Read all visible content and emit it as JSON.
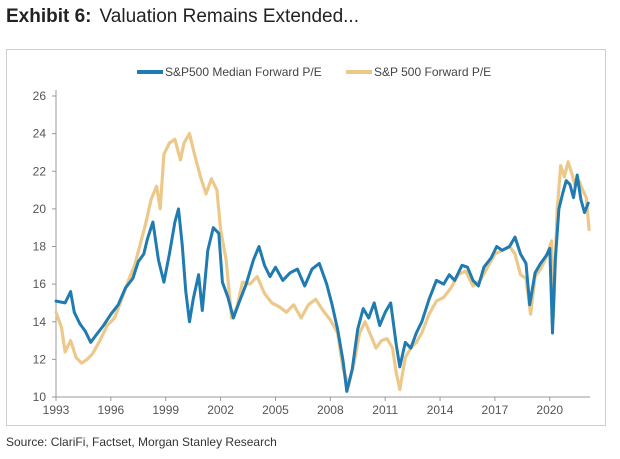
{
  "exhibit": {
    "label": "Exhibit 6:",
    "title": "Valuation Remains Extended...",
    "source": "Source: ClariFi, Factset, Morgan Stanley Research"
  },
  "colors": {
    "median": "#1f7bb0",
    "sp500": "#ecc98a",
    "axis": "#9a9a9a",
    "text": "#555555"
  },
  "chart_data": {
    "type": "line",
    "title": "",
    "xlabel": "",
    "ylabel": "",
    "grid": false,
    "legend": "top-center",
    "xlim": [
      1993,
      2022.2
    ],
    "ylim": [
      10,
      26
    ],
    "xticks": [
      1993,
      1996,
      1999,
      2002,
      2005,
      2008,
      2011,
      2014,
      2017,
      2020
    ],
    "yticks": [
      10,
      12,
      14,
      16,
      18,
      20,
      22,
      24,
      26
    ],
    "series": [
      {
        "name": "S&P500 Median Forward P/E",
        "color": "#1f7bb0",
        "points": [
          [
            1993.0,
            15.1
          ],
          [
            1993.5,
            15.0
          ],
          [
            1993.8,
            15.6
          ],
          [
            1994.0,
            14.5
          ],
          [
            1994.3,
            13.9
          ],
          [
            1994.6,
            13.5
          ],
          [
            1994.9,
            12.9
          ],
          [
            1995.2,
            13.3
          ],
          [
            1995.6,
            13.8
          ],
          [
            1996.0,
            14.4
          ],
          [
            1996.4,
            14.9
          ],
          [
            1996.8,
            15.8
          ],
          [
            1997.2,
            16.3
          ],
          [
            1997.5,
            17.2
          ],
          [
            1997.8,
            17.6
          ],
          [
            1998.0,
            18.4
          ],
          [
            1998.3,
            19.3
          ],
          [
            1998.6,
            17.3
          ],
          [
            1998.9,
            16.1
          ],
          [
            1999.2,
            17.6
          ],
          [
            1999.5,
            19.3
          ],
          [
            1999.7,
            20.0
          ],
          [
            1999.9,
            18.1
          ],
          [
            2000.1,
            15.6
          ],
          [
            2000.3,
            14.0
          ],
          [
            2000.5,
            15.2
          ],
          [
            2000.8,
            16.5
          ],
          [
            2001.0,
            14.6
          ],
          [
            2001.3,
            17.8
          ],
          [
            2001.6,
            19.0
          ],
          [
            2001.9,
            18.7
          ],
          [
            2002.1,
            16.1
          ],
          [
            2002.4,
            15.3
          ],
          [
            2002.7,
            14.2
          ],
          [
            2003.0,
            15.0
          ],
          [
            2003.4,
            16.0
          ],
          [
            2003.8,
            17.3
          ],
          [
            2004.1,
            18.0
          ],
          [
            2004.4,
            17.0
          ],
          [
            2004.7,
            16.4
          ],
          [
            2005.0,
            16.9
          ],
          [
            2005.4,
            16.2
          ],
          [
            2005.8,
            16.6
          ],
          [
            2006.2,
            16.8
          ],
          [
            2006.6,
            15.9
          ],
          [
            2007.0,
            16.8
          ],
          [
            2007.4,
            17.1
          ],
          [
            2007.8,
            16.0
          ],
          [
            2008.1,
            14.9
          ],
          [
            2008.4,
            13.6
          ],
          [
            2008.7,
            11.9
          ],
          [
            2008.9,
            10.3
          ],
          [
            2009.2,
            11.5
          ],
          [
            2009.5,
            13.6
          ],
          [
            2009.8,
            14.7
          ],
          [
            2010.1,
            14.2
          ],
          [
            2010.4,
            15.0
          ],
          [
            2010.7,
            13.8
          ],
          [
            2011.0,
            14.5
          ],
          [
            2011.3,
            15.0
          ],
          [
            2011.6,
            12.8
          ],
          [
            2011.8,
            11.6
          ],
          [
            2012.1,
            12.9
          ],
          [
            2012.4,
            12.6
          ],
          [
            2012.7,
            13.4
          ],
          [
            2013.0,
            14.0
          ],
          [
            2013.4,
            15.2
          ],
          [
            2013.8,
            16.2
          ],
          [
            2014.2,
            16.0
          ],
          [
            2014.5,
            16.5
          ],
          [
            2014.8,
            16.2
          ],
          [
            2015.2,
            17.0
          ],
          [
            2015.5,
            16.9
          ],
          [
            2015.8,
            16.2
          ],
          [
            2016.1,
            15.9
          ],
          [
            2016.4,
            16.9
          ],
          [
            2016.8,
            17.4
          ],
          [
            2017.1,
            18.0
          ],
          [
            2017.4,
            17.8
          ],
          [
            2017.8,
            18.0
          ],
          [
            2018.1,
            18.5
          ],
          [
            2018.4,
            17.6
          ],
          [
            2018.7,
            17.1
          ],
          [
            2018.9,
            14.9
          ],
          [
            2019.2,
            16.6
          ],
          [
            2019.5,
            17.1
          ],
          [
            2019.8,
            17.5
          ],
          [
            2020.0,
            17.9
          ],
          [
            2020.15,
            13.4
          ],
          [
            2020.3,
            17.3
          ],
          [
            2020.5,
            20.0
          ],
          [
            2020.7,
            20.8
          ],
          [
            2020.9,
            21.5
          ],
          [
            2021.1,
            21.3
          ],
          [
            2021.3,
            20.6
          ],
          [
            2021.5,
            21.8
          ],
          [
            2021.7,
            20.5
          ],
          [
            2021.9,
            19.8
          ],
          [
            2022.1,
            20.3
          ]
        ]
      },
      {
        "name": "S&P 500 Forward P/E",
        "color": "#ecc98a",
        "points": [
          [
            1993.0,
            14.5
          ],
          [
            1993.3,
            13.7
          ],
          [
            1993.5,
            12.4
          ],
          [
            1993.8,
            13.0
          ],
          [
            1994.1,
            12.1
          ],
          [
            1994.4,
            11.8
          ],
          [
            1994.7,
            12.0
          ],
          [
            1995.0,
            12.3
          ],
          [
            1995.4,
            13.0
          ],
          [
            1995.8,
            13.8
          ],
          [
            1996.2,
            14.2
          ],
          [
            1996.6,
            15.2
          ],
          [
            1997.0,
            16.3
          ],
          [
            1997.3,
            17.0
          ],
          [
            1997.6,
            18.1
          ],
          [
            1997.9,
            19.2
          ],
          [
            1998.2,
            20.5
          ],
          [
            1998.5,
            21.2
          ],
          [
            1998.7,
            20.0
          ],
          [
            1998.9,
            22.9
          ],
          [
            1999.2,
            23.5
          ],
          [
            1999.5,
            23.7
          ],
          [
            1999.8,
            22.6
          ],
          [
            2000.0,
            23.5
          ],
          [
            2000.3,
            24.0
          ],
          [
            2000.6,
            22.8
          ],
          [
            2000.9,
            21.7
          ],
          [
            2001.2,
            20.8
          ],
          [
            2001.5,
            21.6
          ],
          [
            2001.8,
            21.0
          ],
          [
            2002.0,
            18.9
          ],
          [
            2002.3,
            17.3
          ],
          [
            2002.6,
            14.2
          ],
          [
            2002.9,
            14.8
          ],
          [
            2003.2,
            16.1
          ],
          [
            2003.6,
            16.0
          ],
          [
            2004.0,
            16.4
          ],
          [
            2004.4,
            15.5
          ],
          [
            2004.8,
            15.0
          ],
          [
            2005.2,
            14.8
          ],
          [
            2005.6,
            14.5
          ],
          [
            2006.0,
            14.9
          ],
          [
            2006.4,
            14.2
          ],
          [
            2006.8,
            14.9
          ],
          [
            2007.2,
            15.2
          ],
          [
            2007.6,
            14.6
          ],
          [
            2008.0,
            14.1
          ],
          [
            2008.4,
            13.4
          ],
          [
            2008.7,
            11.5
          ],
          [
            2009.0,
            10.6
          ],
          [
            2009.3,
            11.8
          ],
          [
            2009.6,
            13.4
          ],
          [
            2009.9,
            14.0
          ],
          [
            2010.2,
            13.3
          ],
          [
            2010.5,
            12.6
          ],
          [
            2010.8,
            13.0
          ],
          [
            2011.1,
            13.1
          ],
          [
            2011.4,
            12.6
          ],
          [
            2011.6,
            11.3
          ],
          [
            2011.8,
            10.4
          ],
          [
            2012.1,
            12.1
          ],
          [
            2012.4,
            12.6
          ],
          [
            2012.7,
            12.9
          ],
          [
            2013.0,
            13.4
          ],
          [
            2013.4,
            14.4
          ],
          [
            2013.8,
            15.1
          ],
          [
            2014.2,
            15.3
          ],
          [
            2014.6,
            15.8
          ],
          [
            2015.0,
            16.5
          ],
          [
            2015.4,
            16.7
          ],
          [
            2015.8,
            15.9
          ],
          [
            2016.2,
            16.2
          ],
          [
            2016.6,
            16.9
          ],
          [
            2017.0,
            17.6
          ],
          [
            2017.4,
            17.8
          ],
          [
            2017.8,
            18.0
          ],
          [
            2018.1,
            17.6
          ],
          [
            2018.4,
            16.5
          ],
          [
            2018.7,
            16.3
          ],
          [
            2018.95,
            14.4
          ],
          [
            2019.2,
            16.4
          ],
          [
            2019.5,
            16.8
          ],
          [
            2019.8,
            17.4
          ],
          [
            2020.1,
            18.3
          ],
          [
            2020.2,
            14.2
          ],
          [
            2020.4,
            19.9
          ],
          [
            2020.6,
            22.3
          ],
          [
            2020.8,
            21.7
          ],
          [
            2021.0,
            22.5
          ],
          [
            2021.2,
            21.9
          ],
          [
            2021.4,
            21.2
          ],
          [
            2021.6,
            21.5
          ],
          [
            2021.8,
            21.0
          ],
          [
            2022.0,
            20.6
          ],
          [
            2022.15,
            18.9
          ]
        ]
      }
    ]
  }
}
